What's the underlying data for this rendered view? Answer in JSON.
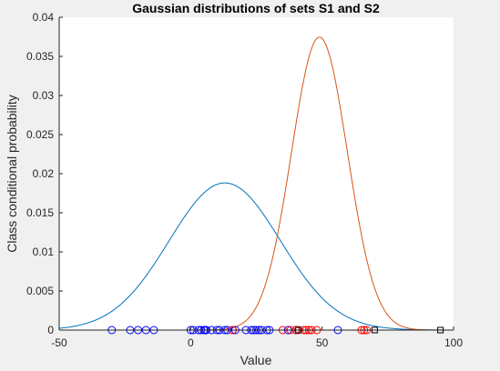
{
  "chart_data": {
    "type": "line",
    "title": "Gaussian distributions of sets S1 and S2",
    "xlabel": "Value",
    "ylabel": "Class conditional probability",
    "xlim": [
      -50,
      100
    ],
    "ylim": [
      0,
      0.04
    ],
    "xticks": [
      "-50",
      "0",
      "50",
      "100"
    ],
    "yticks": [
      "0",
      "0.005",
      "0.01",
      "0.015",
      "0.02",
      "0.025",
      "0.03",
      "0.035",
      "0.04"
    ],
    "grid": false,
    "series": [
      {
        "type": "gaussian",
        "mean": 13,
        "std": 21.2,
        "color": "#0072bd"
      },
      {
        "type": "gaussian",
        "mean": 49,
        "std": 10.65,
        "color": "#d95319"
      }
    ],
    "samples": {
      "S1": {
        "color": "#0000ff",
        "marker": "circle",
        "x": [
          -30,
          -23,
          -20,
          -17,
          -14,
          0,
          1,
          3,
          4,
          5,
          5.5,
          6,
          8,
          10,
          11,
          13,
          14,
          16,
          17,
          21,
          23,
          24,
          25,
          26,
          27,
          29,
          30,
          37,
          40,
          56
        ]
      },
      "S2": {
        "color": "#ff0000",
        "marker": "circle",
        "x": [
          16,
          35,
          38,
          40,
          41,
          43,
          44,
          45,
          46,
          48,
          65,
          66,
          67
        ]
      },
      "markers": {
        "color": "#000000",
        "marker": "square",
        "x": [
          41,
          70,
          95
        ]
      }
    }
  }
}
